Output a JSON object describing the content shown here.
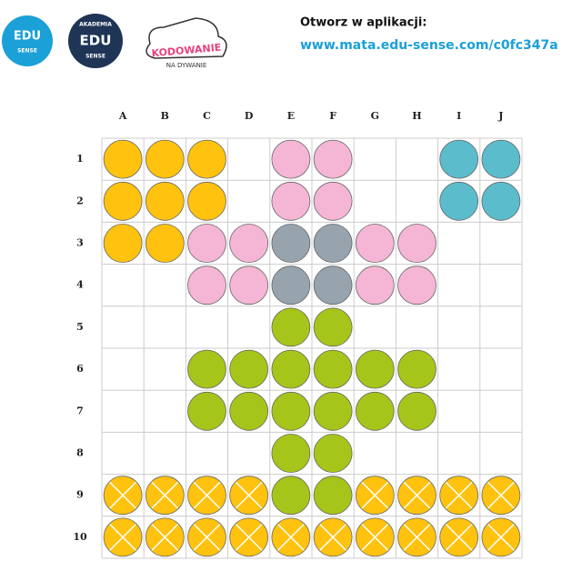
{
  "logos": [
    {
      "lines": [
        "EDU",
        "SENSE"
      ],
      "color": "#1ba0d8"
    },
    {
      "lines": [
        "AKADEMIA",
        "EDU",
        "SENSE"
      ],
      "color": "#1f3556"
    },
    {
      "lines": [
        "KODOWANIE",
        "NA DYWANIE"
      ]
    }
  ],
  "header": {
    "prompt": "Otworz w aplikacji:",
    "url": "www.mata.edu-sense.com/c0fc347a"
  },
  "grid": {
    "columns": [
      "A",
      "B",
      "C",
      "D",
      "E",
      "F",
      "G",
      "H",
      "I",
      "J"
    ],
    "row_labels": [
      "1",
      "2",
      "3",
      "4",
      "5",
      "6",
      "7",
      "8",
      "9",
      "10"
    ],
    "palette": {
      "Y": "#ffc20e",
      "P": "#f4b6d4",
      "B": "#5bbccc",
      "S": "#97a3ad",
      "L": "#a6c51a",
      "X": "#ffc20e"
    },
    "crossed": [
      "X"
    ],
    "rows": [
      [
        "Y",
        "Y",
        "Y",
        null,
        "P",
        "P",
        null,
        null,
        "B",
        "B"
      ],
      [
        "Y",
        "Y",
        "Y",
        null,
        "P",
        "P",
        null,
        null,
        "B",
        "B"
      ],
      [
        "Y",
        "Y",
        "P",
        "P",
        "S",
        "S",
        "P",
        "P",
        null,
        null
      ],
      [
        null,
        null,
        "P",
        "P",
        "S",
        "S",
        "P",
        "P",
        null,
        null
      ],
      [
        null,
        null,
        null,
        null,
        "L",
        "L",
        null,
        null,
        null,
        null
      ],
      [
        null,
        null,
        "L",
        "L",
        "L",
        "L",
        "L",
        "L",
        null,
        null
      ],
      [
        null,
        null,
        "L",
        "L",
        "L",
        "L",
        "L",
        "L",
        null,
        null
      ],
      [
        null,
        null,
        null,
        null,
        "L",
        "L",
        null,
        null,
        null,
        null
      ],
      [
        "X",
        "X",
        "X",
        "X",
        "L",
        "L",
        "X",
        "X",
        "X",
        "X"
      ],
      [
        "X",
        "X",
        "X",
        "X",
        "X",
        "X",
        "X",
        "X",
        "X",
        "X"
      ]
    ]
  }
}
